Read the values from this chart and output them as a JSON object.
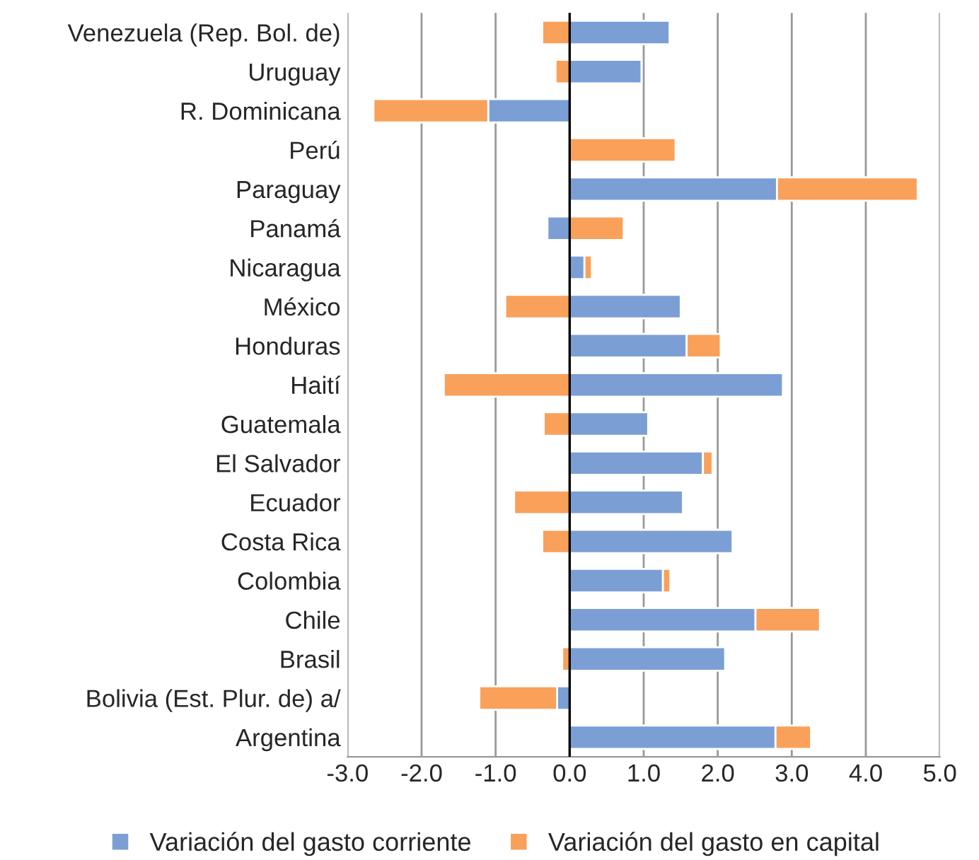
{
  "chart_data": {
    "type": "bar",
    "orientation": "horizontal",
    "stacked": true,
    "categories": [
      "Venezuela (Rep. Bol. de)",
      "Uruguay",
      "R. Dominicana",
      "Perú",
      "Paraguay",
      "Panamá",
      "Nicaragua",
      "México",
      "Honduras",
      "Haití",
      "Guatemala",
      "El Salvador",
      "Ecuador",
      "Costa Rica",
      "Colombia",
      "Chile",
      "Brasil",
      "Bolivia (Est. Plur. de) a/",
      "Argentina"
    ],
    "series": [
      {
        "name": "Variación del gasto corriente",
        "color": "#7b9fd4",
        "values": [
          1.35,
          0.97,
          -1.1,
          0,
          2.8,
          -0.3,
          0.2,
          1.5,
          1.58,
          2.88,
          1.06,
          1.8,
          1.53,
          2.2,
          1.26,
          2.51,
          2.1,
          -0.17,
          2.78
        ]
      },
      {
        "name": "Variación del gasto en capital",
        "color": "#f9a05a",
        "values": [
          -0.37,
          -0.19,
          -1.55,
          1.43,
          1.9,
          0.73,
          0.1,
          -0.87,
          0.46,
          -1.7,
          -0.35,
          0.13,
          -0.75,
          -0.37,
          0.1,
          0.87,
          -0.1,
          -1.05,
          0.48
        ]
      }
    ],
    "xlim": [
      -3,
      5
    ],
    "xticks": [
      {
        "value": -3,
        "label": "-3.0"
      },
      {
        "value": -2,
        "label": "-2.0"
      },
      {
        "value": -1,
        "label": "-1.0"
      },
      {
        "value": 0,
        "label": "0.0"
      },
      {
        "value": 1,
        "label": "1.0"
      },
      {
        "value": 2,
        "label": "2.0"
      },
      {
        "value": 3,
        "label": "3.0"
      },
      {
        "value": 4,
        "label": "4.0"
      },
      {
        "value": 5,
        "label": "5.0"
      }
    ],
    "grid": "x",
    "legend": "bottom"
  }
}
